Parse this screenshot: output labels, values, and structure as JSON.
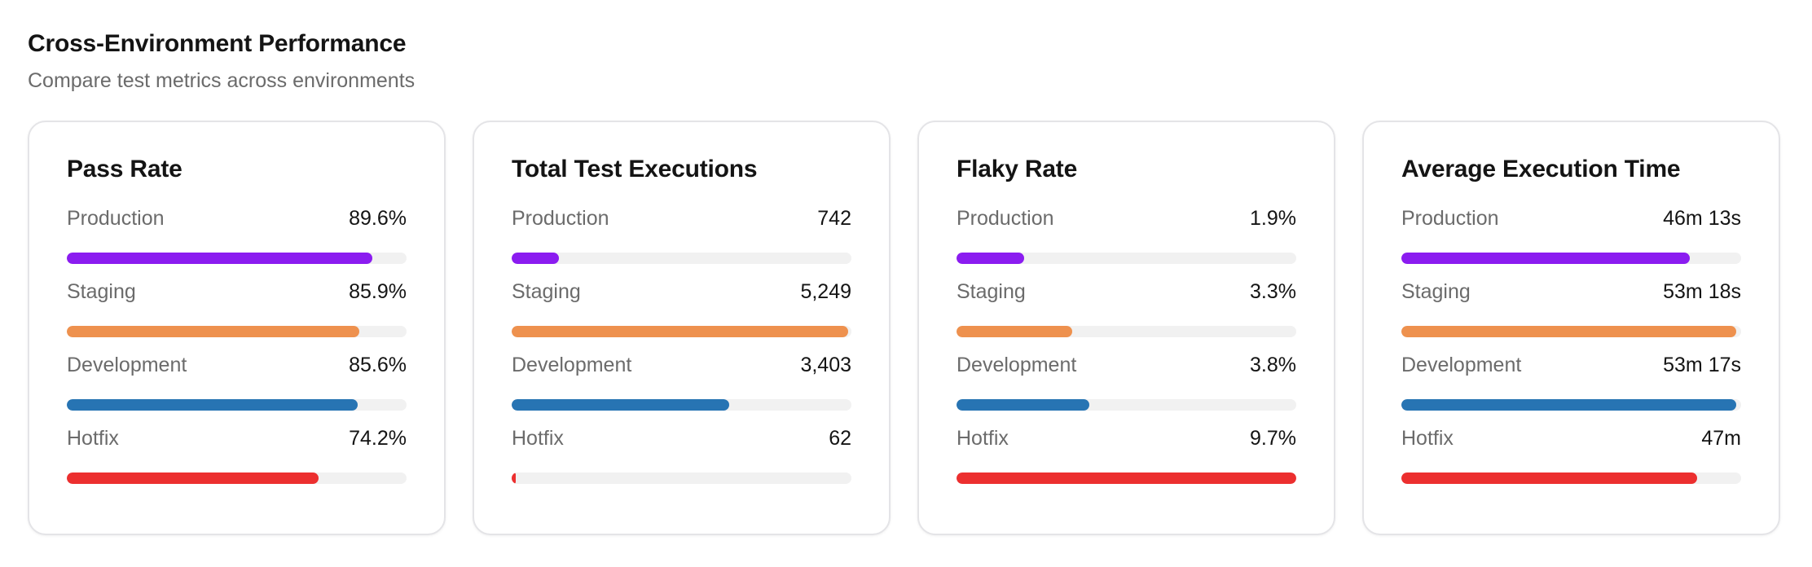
{
  "header": {
    "title": "Cross-Environment Performance",
    "subtitle": "Compare test metrics across environments"
  },
  "colors": {
    "production": "#8b1cf0",
    "staging": "#ee914e",
    "development": "#2774b3",
    "hotfix": "#ec2f2f",
    "track": "#f1f1f1"
  },
  "cards": [
    {
      "title": "Pass Rate",
      "rows": [
        {
          "label": "Production",
          "value": "89.6%",
          "fill_percent": 90,
          "color_key": "production"
        },
        {
          "label": "Staging",
          "value": "85.9%",
          "fill_percent": 86,
          "color_key": "staging"
        },
        {
          "label": "Development",
          "value": "85.6%",
          "fill_percent": 85.5,
          "color_key": "development"
        },
        {
          "label": "Hotfix",
          "value": "74.2%",
          "fill_percent": 74,
          "color_key": "hotfix"
        }
      ]
    },
    {
      "title": "Total Test Executions",
      "rows": [
        {
          "label": "Production",
          "value": "742",
          "fill_percent": 14,
          "color_key": "production"
        },
        {
          "label": "Staging",
          "value": "5,249",
          "fill_percent": 99,
          "color_key": "staging"
        },
        {
          "label": "Development",
          "value": "3,403",
          "fill_percent": 64,
          "color_key": "development"
        },
        {
          "label": "Hotfix",
          "value": "62",
          "fill_percent": 1.2,
          "color_key": "hotfix"
        }
      ]
    },
    {
      "title": "Flaky Rate",
      "rows": [
        {
          "label": "Production",
          "value": "1.9%",
          "fill_percent": 20,
          "color_key": "production"
        },
        {
          "label": "Staging",
          "value": "3.3%",
          "fill_percent": 34,
          "color_key": "staging"
        },
        {
          "label": "Development",
          "value": "3.8%",
          "fill_percent": 39,
          "color_key": "development"
        },
        {
          "label": "Hotfix",
          "value": "9.7%",
          "fill_percent": 100,
          "color_key": "hotfix"
        }
      ]
    },
    {
      "title": "Average Execution Time",
      "rows": [
        {
          "label": "Production",
          "value": "46m 13s",
          "fill_percent": 85,
          "color_key": "production"
        },
        {
          "label": "Staging",
          "value": "53m 18s",
          "fill_percent": 98.5,
          "color_key": "staging"
        },
        {
          "label": "Development",
          "value": "53m 17s",
          "fill_percent": 98.5,
          "color_key": "development"
        },
        {
          "label": "Hotfix",
          "value": "47m",
          "fill_percent": 87,
          "color_key": "hotfix"
        }
      ]
    }
  ]
}
